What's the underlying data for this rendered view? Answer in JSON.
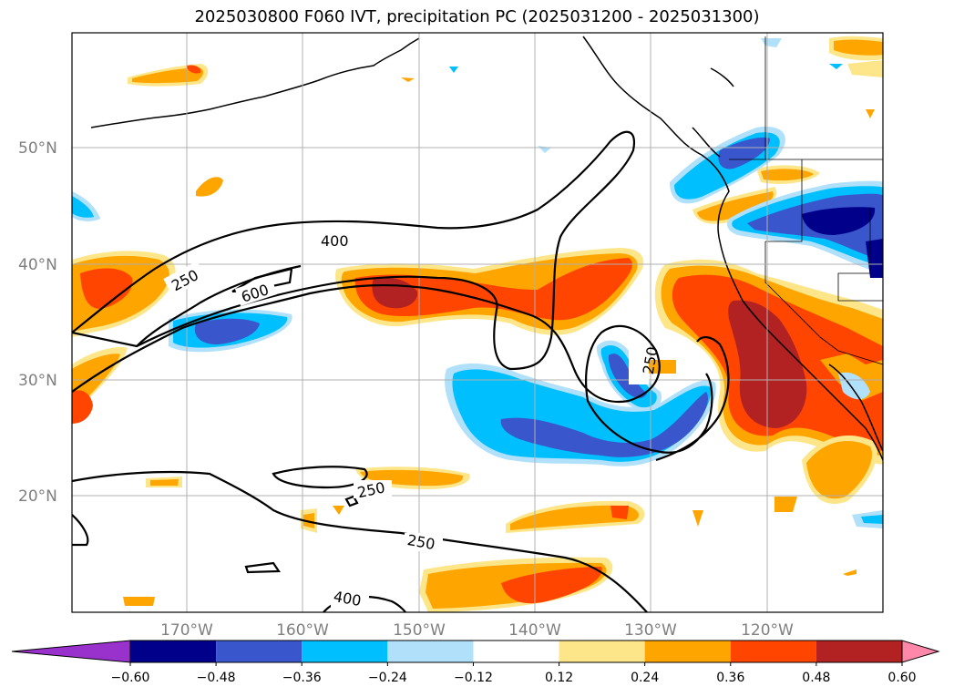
{
  "title": "2025030800 F060 IVT, precipitation PC (2025031200 - 2025031300)",
  "lat_labels": [
    "50°N",
    "40°N",
    "30°N",
    "20°N"
  ],
  "lon_labels": [
    "170°W",
    "160°W",
    "150°W",
    "140°W",
    "130°W",
    "120°W"
  ],
  "contour_labels": [
    "400",
    "250",
    "600",
    "250",
    "250",
    "250",
    "400"
  ],
  "colorbar": {
    "ticks": [
      "−0.60",
      "−0.48",
      "−0.36",
      "−0.24",
      "−0.12",
      "0.12",
      "0.24",
      "0.36",
      "0.48",
      "0.60"
    ],
    "colors": [
      "#9932cc",
      "#00008b",
      "#3a56cc",
      "#00bfff",
      "#b0e0fa",
      "#ffffff",
      "#fde68a",
      "#ffa500",
      "#ff4500",
      "#b22222",
      "#ff88aa"
    ]
  },
  "colors": {
    "yellow": "#fde68a",
    "orange": "#ffa500",
    "redorange": "#ff4500",
    "darkred": "#b22222",
    "lightblue": "#b0e0fa",
    "cyan": "#00bfff",
    "blue": "#3a56cc",
    "navy": "#00008b"
  }
}
